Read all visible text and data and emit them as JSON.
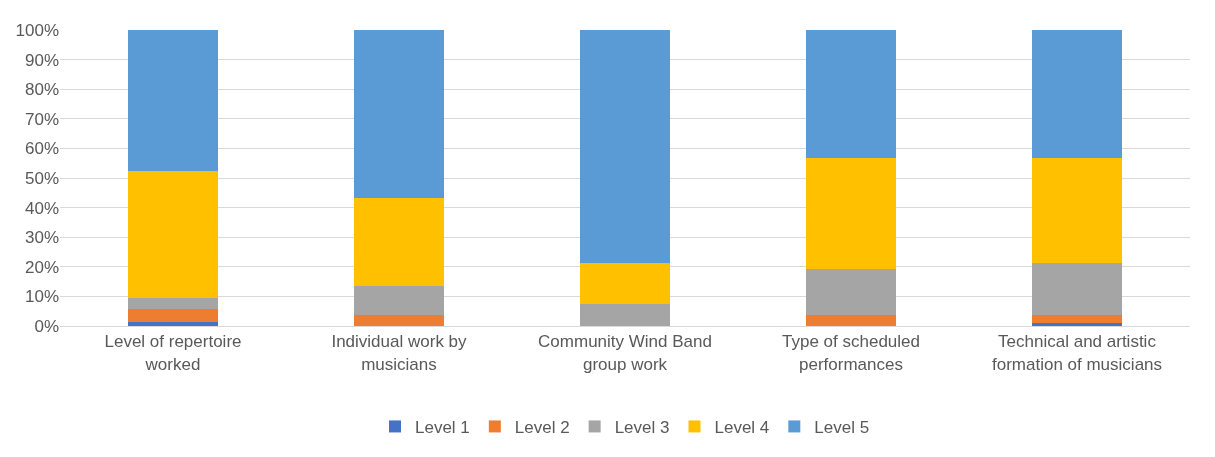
{
  "chart_data": {
    "type": "bar",
    "stacked": true,
    "categories": [
      "Level of repertoire worked",
      "Individual work by musicians",
      "Community Wind Band group work",
      "Type of scheduled performances",
      "Technical and artistic formation of musicians"
    ],
    "series": [
      {
        "name": "Level 1",
        "color": "#4472c4",
        "values": [
          1.4,
          0,
          0,
          0,
          1
        ]
      },
      {
        "name": "Level 2",
        "color": "#ed7d31",
        "values": [
          4.3,
          3.6,
          0,
          3.6,
          2.6
        ]
      },
      {
        "name": "Level 3",
        "color": "#a5a5a5",
        "values": [
          3.6,
          9.9,
          7.4,
          15.7,
          17.8
        ]
      },
      {
        "name": "Level 4",
        "color": "#ffc000",
        "values": [
          43.1,
          29.6,
          14,
          37.4,
          35.3
        ]
      },
      {
        "name": "Level 5",
        "color": "#5b9bd5",
        "values": [
          47.6,
          56.9,
          78.6,
          43.3,
          43.3
        ]
      }
    ],
    "ylim": [
      0,
      100
    ],
    "yticks": [
      {
        "value": 0,
        "label": "0%"
      },
      {
        "value": 10,
        "label": "10%"
      },
      {
        "value": 20,
        "label": "20%"
      },
      {
        "value": 30,
        "label": "30%"
      },
      {
        "value": 40,
        "label": "40%"
      },
      {
        "value": 50,
        "label": "50%"
      },
      {
        "value": 60,
        "label": "60%"
      },
      {
        "value": 70,
        "label": "70%"
      },
      {
        "value": 80,
        "label": "80%"
      },
      {
        "value": 90,
        "label": "90%"
      },
      {
        "value": 100,
        "label": "100%"
      }
    ],
    "grid": "y",
    "legend": "bottom"
  }
}
